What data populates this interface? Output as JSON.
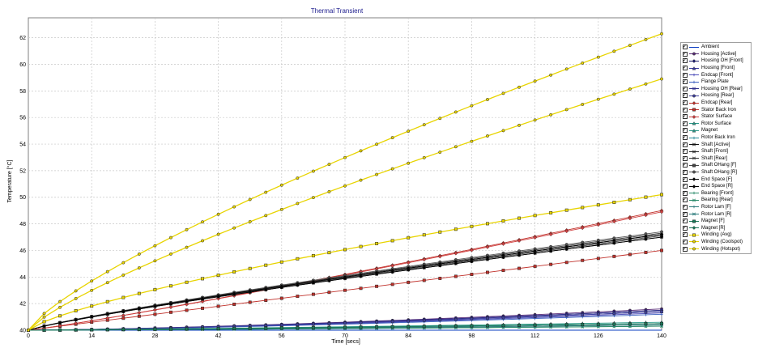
{
  "chart_data": {
    "type": "line",
    "title": "Thermal Transient",
    "xlabel": "Time [secs]",
    "ylabel": "Temperature [°C]",
    "xlim": [
      0,
      140
    ],
    "ylim": [
      40,
      63.5
    ],
    "x_ticks": [
      0,
      14,
      28,
      42,
      56,
      70,
      84,
      98,
      112,
      126,
      140
    ],
    "y_ticks": [
      40,
      42,
      44,
      46,
      48,
      50,
      52,
      54,
      56,
      58,
      60,
      62
    ],
    "grid": true,
    "legend_position": "right",
    "series": [
      {
        "name": "Ambient",
        "color": "#0b3dc2",
        "marker": "line",
        "final": 40.0,
        "curve": 1
      },
      {
        "name": "Housing [Active]",
        "color": "#5a2d7a",
        "marker": "circle",
        "final": 41.6,
        "curve": 1.4
      },
      {
        "name": "Housing OH [Front]",
        "color": "#1c1c6e",
        "marker": "diamond",
        "final": 41.5,
        "curve": 1.4
      },
      {
        "name": "Housing [Front]",
        "color": "#3a3aa0",
        "marker": "triangle",
        "final": 41.4,
        "curve": 1.4
      },
      {
        "name": "Endcap [Front]",
        "color": "#4a4ab8",
        "marker": "plus",
        "final": 41.3,
        "curve": 1.4
      },
      {
        "name": "Flange Plate",
        "color": "#3b5fbf",
        "marker": "plus",
        "final": 41.2,
        "curve": 1.4
      },
      {
        "name": "Housing OH [Rear]",
        "color": "#2d2d8a",
        "marker": "x",
        "final": 41.5,
        "curve": 1.4
      },
      {
        "name": "Housing [Rear]",
        "color": "#4040a0",
        "marker": "circle",
        "final": 41.4,
        "curve": 1.4
      },
      {
        "name": "Endcap [Rear]",
        "color": "#c0302a",
        "marker": "diamond",
        "final": 49.0,
        "curve": 1.1
      },
      {
        "name": "Stator Back Iron",
        "color": "#c0302a",
        "marker": "square",
        "final": 46.0,
        "curve": 1.0
      },
      {
        "name": "Stator Surface",
        "color": "#d04040",
        "marker": "diamond",
        "final": 48.9,
        "curve": 1.1
      },
      {
        "name": "Rotor Surface",
        "color": "#2a9a8a",
        "marker": "triangle",
        "final": 40.5,
        "curve": 1.2
      },
      {
        "name": "Magnet",
        "color": "#2a9a8a",
        "marker": "triangle",
        "final": 40.6,
        "curve": 1.2
      },
      {
        "name": "Rotor Back Iron",
        "color": "#2a8a9a",
        "marker": "plus",
        "final": 40.5,
        "curve": 1.2
      },
      {
        "name": "Shaft [Active]",
        "color": "#111111",
        "marker": "x",
        "final": 47.2,
        "curve": 0.85
      },
      {
        "name": "Shaft [Front]",
        "color": "#222222",
        "marker": "x",
        "final": 47.0,
        "curve": 0.85
      },
      {
        "name": "Shaft [Rear]",
        "color": "#333333",
        "marker": "x",
        "final": 47.3,
        "curve": 0.85
      },
      {
        "name": "Shaft OHang [F]",
        "color": "#444444",
        "marker": "square",
        "final": 47.1,
        "curve": 0.85
      },
      {
        "name": "Shaft OHang [R]",
        "color": "#555555",
        "marker": "circle",
        "final": 47.4,
        "curve": 0.85
      },
      {
        "name": "End Space [F]",
        "color": "#000000",
        "marker": "diamond",
        "final": 47.2,
        "curve": 0.85
      },
      {
        "name": "End Space [R]",
        "color": "#000000",
        "marker": "diamond",
        "final": 47.0,
        "curve": 0.85
      },
      {
        "name": "Bearing [Front]",
        "color": "#2a8a6a",
        "marker": "plus",
        "final": 40.3,
        "curve": 1.3
      },
      {
        "name": "Bearing [Rear]",
        "color": "#2a8a6a",
        "marker": "x",
        "final": 40.3,
        "curve": 1.3
      },
      {
        "name": "Rotor Lam [F]",
        "color": "#2a7a7a",
        "marker": "plus",
        "final": 40.4,
        "curve": 1.3
      },
      {
        "name": "Rotor Lam [R]",
        "color": "#2a7a7a",
        "marker": "x",
        "final": 40.4,
        "curve": 1.3
      },
      {
        "name": "Magnet [F]",
        "color": "#1a7a5a",
        "marker": "square",
        "final": 40.5,
        "curve": 1.2
      },
      {
        "name": "Magnet [R]",
        "color": "#1a7a5a",
        "marker": "diamond",
        "final": 40.5,
        "curve": 1.2
      },
      {
        "name": "Winding (Avg)",
        "color": "#e8d400",
        "marker": "square",
        "final": 50.2,
        "curve": 0.75
      },
      {
        "name": "Winding (Coolspot)",
        "color": "#e8d400",
        "marker": "circle",
        "final": 58.9,
        "curve": 0.8
      },
      {
        "name": "Winding (Hotspot)",
        "color": "#e8d400",
        "marker": "circle",
        "final": 62.3,
        "curve": 0.78
      }
    ]
  }
}
